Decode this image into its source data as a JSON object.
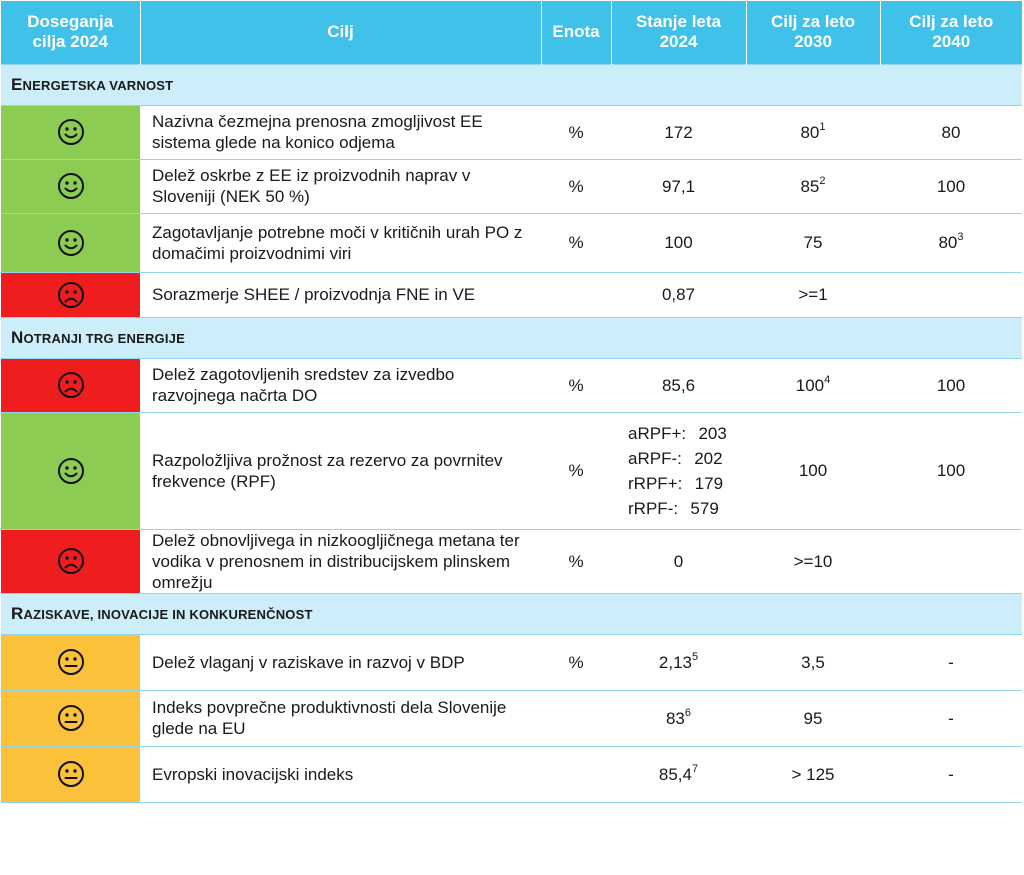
{
  "header": {
    "status": [
      "Doseganja",
      "cilja 2024"
    ],
    "goal": "Cilj",
    "unit": "Enota",
    "y2024": [
      "Stanje leta",
      "2024"
    ],
    "y2030": [
      "Cilj za leto",
      "2030"
    ],
    "y2040": [
      "Cilj za leto",
      "2040"
    ]
  },
  "colors": {
    "green": "#8ccc52",
    "red": "#ef1d1d",
    "orange": "#fcc13a",
    "header": "#3fc1ea",
    "section": "#cbeefa"
  },
  "sections": [
    {
      "title": {
        "first": "E",
        "rest": "NERGETSKA VARNOST"
      },
      "rows": [
        {
          "status": "happy",
          "goal": "Nazivna čezmejna prenosna zmogljivost EE sistema glede na konico odjema",
          "unit": "%",
          "y2024": "172",
          "y2024_sup": "",
          "y2030": "80",
          "y2030_sup": "1",
          "y2040": "80",
          "y2040_sup": ""
        },
        {
          "status": "happy",
          "goal": "Delež oskrbe z EE iz proizvodnih naprav v Sloveniji (NEK 50 %)",
          "unit": "%",
          "y2024": "97,1",
          "y2024_sup": "",
          "y2030": "85",
          "y2030_sup": "2",
          "y2040": "100",
          "y2040_sup": ""
        },
        {
          "status": "happy",
          "goal": "Zagotavljanje potrebne moči v kritičnih urah PO z domačimi proizvodnimi viri",
          "unit": "%",
          "y2024": "100",
          "y2024_sup": "",
          "y2030": "75",
          "y2030_sup": "",
          "y2040": "80",
          "y2040_sup": "3"
        },
        {
          "status": "sad",
          "goal": "Sorazmerje SHEE / proizvodnja FNE in VE",
          "unit": "",
          "y2024": "0,87",
          "y2024_sup": "",
          "y2030": ">=1",
          "y2030_sup": "",
          "y2040": "",
          "y2040_sup": ""
        }
      ]
    },
    {
      "title": {
        "first": "N",
        "rest": "OTRANJI TRG ENERGIJE"
      },
      "rows": [
        {
          "status": "sad",
          "goal": "Delež zagotovljenih sredstev za izvedbo razvojnega načrta DO",
          "unit": "%",
          "y2024": "85,6",
          "y2024_sup": "",
          "y2030": "100",
          "y2030_sup": "4",
          "y2040": "100",
          "y2040_sup": ""
        },
        {
          "status": "happy",
          "goal": "Razpoložljiva prožnost za rezervo za povrnitev frekvence (RPF)",
          "unit": "%",
          "y2024_multi": [
            {
              "label": "aRPF+:",
              "value": "203"
            },
            {
              "label": "aRPF-:",
              "value": "202"
            },
            {
              "label": "rRPF+:",
              "value": "179"
            },
            {
              "label": "rRPF-:",
              "value": "579"
            }
          ],
          "y2030": "100",
          "y2030_sup": "",
          "y2040": "100",
          "y2040_sup": ""
        },
        {
          "status": "sad",
          "goal": "Delež obnovljivega in nizkoogljičnega metana ter vodika v prenosnem in distribucijskem plinskem omrežju",
          "unit": "%",
          "y2024": "0",
          "y2024_sup": "",
          "y2030": ">=10",
          "y2030_sup": "",
          "y2040": "",
          "y2040_sup": ""
        }
      ]
    },
    {
      "title": {
        "first": "R",
        "rest": "AZISKAVE, INOVACIJE IN KONKURENČNOST"
      },
      "rows": [
        {
          "status": "neutral",
          "goal": "Delež vlaganj v raziskave in razvoj v BDP",
          "unit": "%",
          "y2024": "2,13",
          "y2024_sup": "5",
          "y2030": "3,5",
          "y2030_sup": "",
          "y2040": "-",
          "y2040_sup": ""
        },
        {
          "status": "neutral",
          "goal": "Indeks povprečne produktivnosti dela Slovenije glede na EU",
          "unit": "",
          "y2024": "83",
          "y2024_sup": "6",
          "y2030": "95",
          "y2030_sup": "",
          "y2040": "-",
          "y2040_sup": ""
        },
        {
          "status": "neutral",
          "goal": "Evropski inovacijski indeks",
          "unit": "",
          "y2024": "85,4",
          "y2024_sup": "7",
          "y2030": "> 125",
          "y2030_sup": "",
          "y2040": "-",
          "y2040_sup": ""
        }
      ]
    }
  ]
}
